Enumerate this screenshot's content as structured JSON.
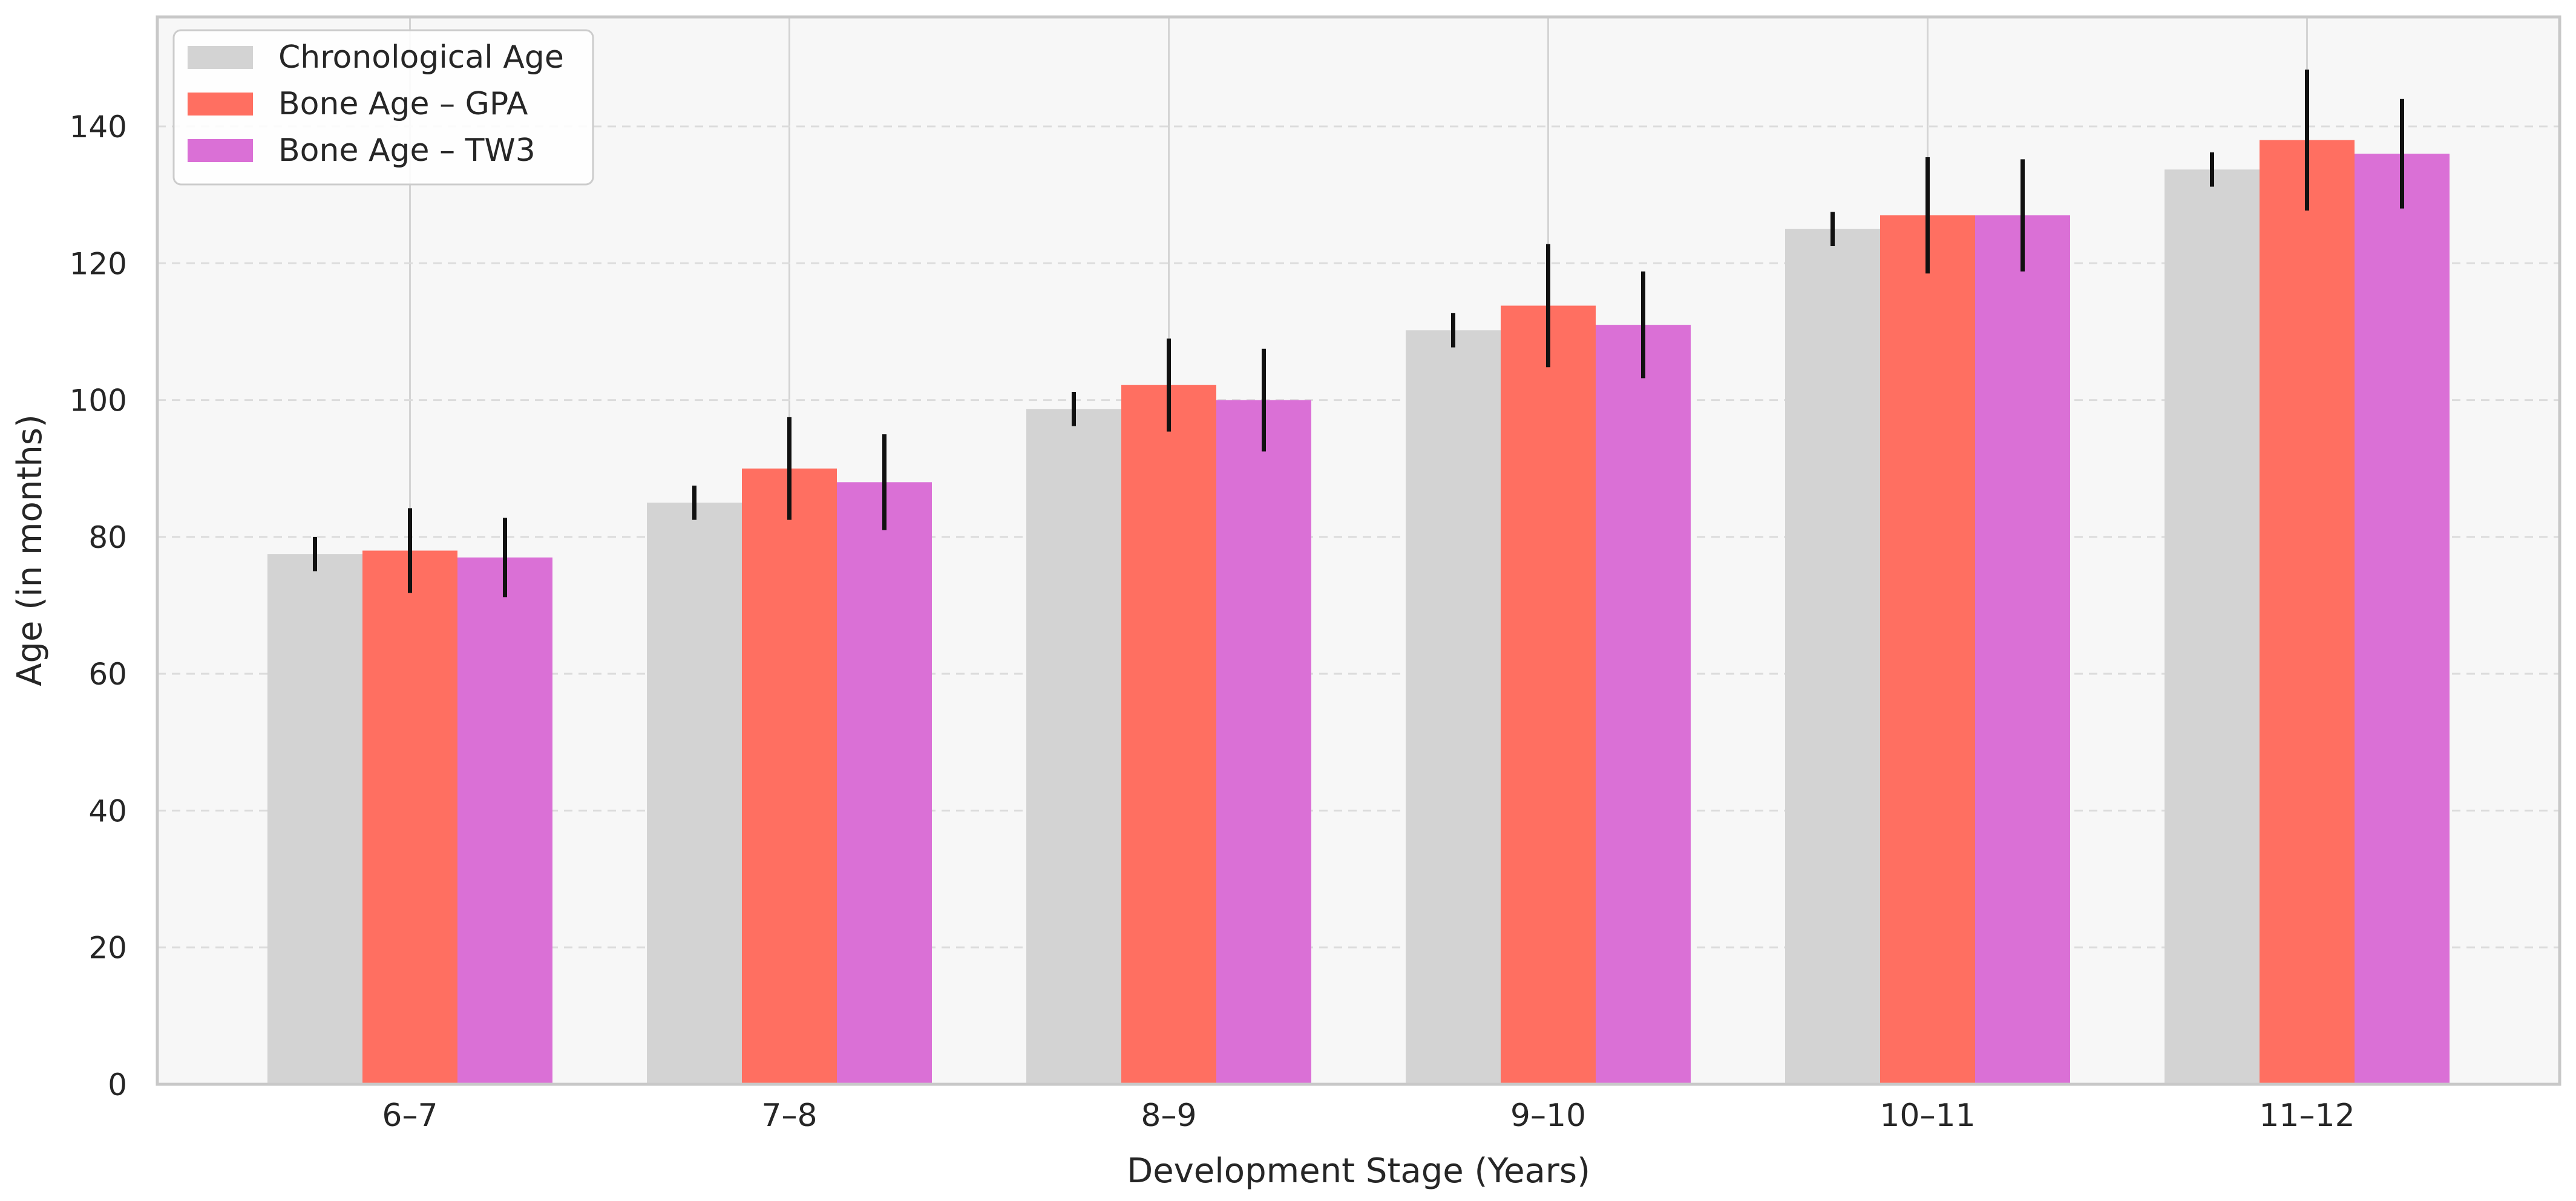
{
  "chart_data": {
    "type": "bar",
    "title": "",
    "xlabel": "Development Stage (Years)",
    "ylabel": "Age (in months)",
    "categories": [
      "6–7",
      "7–8",
      "8–9",
      "9–10",
      "10–11",
      "11–12"
    ],
    "ylim": [
      0,
      156
    ],
    "yticks": [
      0,
      20,
      40,
      60,
      80,
      100,
      120,
      140
    ],
    "grid": {
      "y": true,
      "x": true
    },
    "legend": {
      "position": "top-left"
    },
    "series": [
      {
        "name": "Chronological Age",
        "color": "#d3d3d3",
        "values": [
          77.5,
          85,
          98.7,
          110.2,
          125,
          133.7
        ],
        "errors": [
          2.5,
          2.5,
          2.5,
          2.5,
          2.5,
          2.5
        ]
      },
      {
        "name": "Bone Age – GPA",
        "color": "#ff6f61",
        "values": [
          78,
          90,
          102.2,
          113.8,
          127,
          138
        ],
        "errors": [
          6.2,
          7.5,
          6.8,
          9,
          8.5,
          10.3
        ]
      },
      {
        "name": "Bone Age – TW3",
        "color": "#da70d6",
        "values": [
          77,
          88,
          100,
          111,
          127,
          136
        ],
        "errors": [
          5.8,
          7,
          7.5,
          7.8,
          8.2,
          8
        ]
      }
    ]
  }
}
